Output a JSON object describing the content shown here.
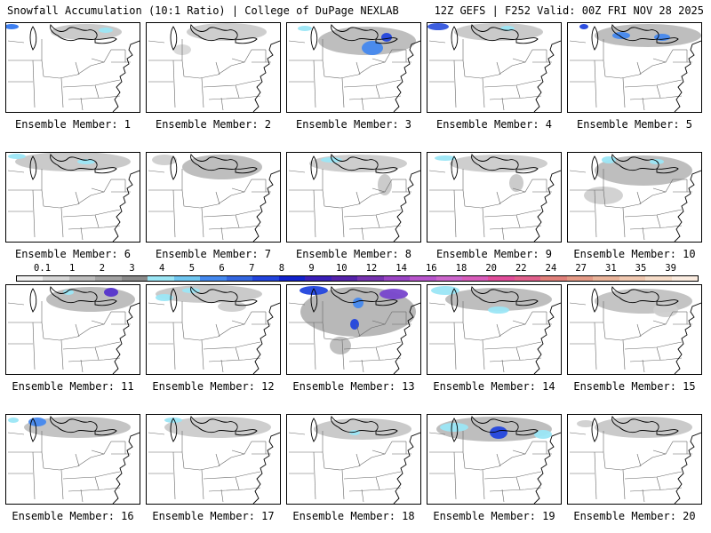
{
  "header": {
    "left": "Snowfall Accumulation (10:1 Ratio) | College of DuPage NEXLAB",
    "right": "12Z GEFS | F252 Valid: 00Z FRI NOV 28 2025"
  },
  "panels": [
    {
      "label": "Ensemble Member: 1",
      "snow": [
        {
          "cx": 90,
          "cy": 10,
          "rx": 40,
          "ry": 9,
          "c": "#b8b8b8"
        },
        {
          "cx": 112,
          "cy": 8,
          "rx": 8,
          "ry": 3,
          "c": "#9be6f5"
        },
        {
          "cx": 6,
          "cy": 4,
          "rx": 8,
          "ry": 3,
          "c": "#3377ee"
        }
      ]
    },
    {
      "label": "Ensemble Member: 2",
      "snow": [
        {
          "cx": 90,
          "cy": 10,
          "rx": 45,
          "ry": 10,
          "c": "#bdbdbd"
        },
        {
          "cx": 40,
          "cy": 30,
          "rx": 10,
          "ry": 6,
          "c": "#d8d8d8"
        }
      ]
    },
    {
      "label": "Ensemble Member: 3",
      "snow": [
        {
          "cx": 90,
          "cy": 20,
          "rx": 55,
          "ry": 16,
          "c": "#a8a8a8"
        },
        {
          "cx": 96,
          "cy": 28,
          "rx": 12,
          "ry": 8,
          "c": "#4488ee"
        },
        {
          "cx": 112,
          "cy": 16,
          "rx": 6,
          "ry": 5,
          "c": "#2244dd"
        },
        {
          "cx": 20,
          "cy": 6,
          "rx": 8,
          "ry": 3,
          "c": "#9be6f5"
        }
      ]
    },
    {
      "label": "Ensemble Member: 4",
      "snow": [
        {
          "cx": 80,
          "cy": 10,
          "rx": 50,
          "ry": 10,
          "c": "#b8b8b8"
        },
        {
          "cx": 12,
          "cy": 4,
          "rx": 12,
          "ry": 4,
          "c": "#3355dd"
        },
        {
          "cx": 90,
          "cy": 6,
          "rx": 8,
          "ry": 3,
          "c": "#9be6f5"
        }
      ]
    },
    {
      "label": "Ensemble Member: 5",
      "snow": [
        {
          "cx": 90,
          "cy": 14,
          "rx": 60,
          "ry": 13,
          "c": "#a8a8a8"
        },
        {
          "cx": 60,
          "cy": 14,
          "rx": 10,
          "ry": 4,
          "c": "#4488ee"
        },
        {
          "cx": 106,
          "cy": 16,
          "rx": 9,
          "ry": 4,
          "c": "#4488ee"
        },
        {
          "cx": 18,
          "cy": 4,
          "rx": 5,
          "ry": 3,
          "c": "#2244dd"
        }
      ]
    },
    {
      "label": "Ensemble Member: 6",
      "snow": [
        {
          "cx": 75,
          "cy": 10,
          "rx": 65,
          "ry": 11,
          "c": "#b8b8b8"
        },
        {
          "cx": 12,
          "cy": 4,
          "rx": 10,
          "ry": 3,
          "c": "#9be6f5"
        },
        {
          "cx": 90,
          "cy": 10,
          "rx": 10,
          "ry": 3,
          "c": "#9be6f5"
        }
      ]
    },
    {
      "label": "Ensemble Member: 7",
      "snow": [
        {
          "cx": 85,
          "cy": 16,
          "rx": 45,
          "ry": 14,
          "c": "#a8a8a8"
        },
        {
          "cx": 20,
          "cy": 8,
          "rx": 14,
          "ry": 6,
          "c": "#cfcfcf"
        }
      ]
    },
    {
      "label": "Ensemble Member: 8",
      "snow": [
        {
          "cx": 80,
          "cy": 12,
          "rx": 55,
          "ry": 10,
          "c": "#bdbdbd"
        },
        {
          "cx": 50,
          "cy": 8,
          "rx": 12,
          "ry": 3,
          "c": "#9be6f5"
        },
        {
          "cx": 110,
          "cy": 36,
          "rx": 8,
          "ry": 12,
          "c": "#c8c8c8"
        }
      ]
    },
    {
      "label": "Ensemble Member: 9",
      "snow": [
        {
          "cx": 80,
          "cy": 12,
          "rx": 55,
          "ry": 10,
          "c": "#bdbdbd"
        },
        {
          "cx": 20,
          "cy": 6,
          "rx": 12,
          "ry": 3,
          "c": "#9be6f5"
        },
        {
          "cx": 100,
          "cy": 34,
          "rx": 8,
          "ry": 10,
          "c": "#c8c8c8"
        }
      ]
    },
    {
      "label": "Ensemble Member: 10",
      "snow": [
        {
          "cx": 85,
          "cy": 20,
          "rx": 55,
          "ry": 17,
          "c": "#a8a8a8"
        },
        {
          "cx": 46,
          "cy": 8,
          "rx": 8,
          "ry": 4,
          "c": "#9be6f5"
        },
        {
          "cx": 100,
          "cy": 10,
          "rx": 8,
          "ry": 3,
          "c": "#9be6f5"
        },
        {
          "cx": 40,
          "cy": 48,
          "rx": 22,
          "ry": 10,
          "c": "#d0d0d0"
        }
      ]
    },
    {
      "label": "Ensemble Member: 11",
      "snow": [
        {
          "cx": 95,
          "cy": 16,
          "rx": 50,
          "ry": 14,
          "c": "#a8a8a8"
        },
        {
          "cx": 118,
          "cy": 8,
          "rx": 8,
          "ry": 5,
          "c": "#5533cc"
        },
        {
          "cx": 70,
          "cy": 8,
          "rx": 6,
          "ry": 3,
          "c": "#9be6f5"
        }
      ]
    },
    {
      "label": "Ensemble Member: 12",
      "snow": [
        {
          "cx": 70,
          "cy": 10,
          "rx": 60,
          "ry": 10,
          "c": "#b8b8b8"
        },
        {
          "cx": 20,
          "cy": 14,
          "rx": 10,
          "ry": 4,
          "c": "#9be6f5"
        },
        {
          "cx": 50,
          "cy": 6,
          "rx": 10,
          "ry": 3,
          "c": "#9be6f5"
        },
        {
          "cx": 96,
          "cy": 24,
          "rx": 16,
          "ry": 6,
          "c": "#cfcfcf"
        }
      ]
    },
    {
      "label": "Ensemble Member: 13",
      "snow": [
        {
          "cx": 80,
          "cy": 30,
          "rx": 65,
          "ry": 28,
          "c": "#a0a0a0"
        },
        {
          "cx": 30,
          "cy": 6,
          "rx": 16,
          "ry": 5,
          "c": "#2244dd"
        },
        {
          "cx": 120,
          "cy": 10,
          "rx": 16,
          "ry": 6,
          "c": "#7744cc"
        },
        {
          "cx": 80,
          "cy": 20,
          "rx": 6,
          "ry": 6,
          "c": "#4488ee"
        },
        {
          "cx": 76,
          "cy": 44,
          "rx": 5,
          "ry": 6,
          "c": "#2244dd"
        },
        {
          "cx": 60,
          "cy": 68,
          "rx": 12,
          "ry": 10,
          "c": "#bdbdbd"
        }
      ]
    },
    {
      "label": "Ensemble Member: 14",
      "snow": [
        {
          "cx": 80,
          "cy": 16,
          "rx": 60,
          "ry": 13,
          "c": "#a8a8a8"
        },
        {
          "cx": 20,
          "cy": 6,
          "rx": 16,
          "ry": 5,
          "c": "#9be6f5"
        },
        {
          "cx": 80,
          "cy": 28,
          "rx": 12,
          "ry": 4,
          "c": "#9be6f5"
        }
      ]
    },
    {
      "label": "Ensemble Member: 15",
      "snow": [
        {
          "cx": 85,
          "cy": 18,
          "rx": 55,
          "ry": 14,
          "c": "#b0b0b0"
        },
        {
          "cx": 110,
          "cy": 28,
          "rx": 14,
          "ry": 8,
          "c": "#cfcfcf"
        }
      ]
    },
    {
      "label": "Ensemble Member: 16",
      "snow": [
        {
          "cx": 80,
          "cy": 14,
          "rx": 60,
          "ry": 12,
          "c": "#b0b0b0"
        },
        {
          "cx": 35,
          "cy": 8,
          "rx": 10,
          "ry": 5,
          "c": "#4488ee"
        },
        {
          "cx": 8,
          "cy": 6,
          "rx": 6,
          "ry": 3,
          "c": "#9be6f5"
        }
      ]
    },
    {
      "label": "Ensemble Member: 17",
      "snow": [
        {
          "cx": 80,
          "cy": 14,
          "rx": 60,
          "ry": 12,
          "c": "#bdbdbd"
        },
        {
          "cx": 30,
          "cy": 6,
          "rx": 10,
          "ry": 3,
          "c": "#9be6f5"
        }
      ]
    },
    {
      "label": "Ensemble Member: 18",
      "snow": [
        {
          "cx": 85,
          "cy": 16,
          "rx": 55,
          "ry": 12,
          "c": "#b8b8b8"
        },
        {
          "cx": 76,
          "cy": 20,
          "rx": 6,
          "ry": 3,
          "c": "#9be6f5"
        }
      ]
    },
    {
      "label": "Ensemble Member: 19",
      "snow": [
        {
          "cx": 75,
          "cy": 16,
          "rx": 65,
          "ry": 14,
          "c": "#a8a8a8"
        },
        {
          "cx": 80,
          "cy": 20,
          "rx": 10,
          "ry": 7,
          "c": "#2244dd"
        },
        {
          "cx": 30,
          "cy": 14,
          "rx": 16,
          "ry": 5,
          "c": "#9be6f5"
        },
        {
          "cx": 130,
          "cy": 22,
          "rx": 10,
          "ry": 5,
          "c": "#9be6f5"
        }
      ]
    },
    {
      "label": "Ensemble Member: 20",
      "snow": [
        {
          "cx": 85,
          "cy": 14,
          "rx": 55,
          "ry": 12,
          "c": "#b8b8b8"
        },
        {
          "cx": 20,
          "cy": 10,
          "rx": 10,
          "ry": 4,
          "c": "#d0d0d0"
        }
      ]
    }
  ],
  "colorbar": {
    "ticks": [
      "0.1",
      "1",
      "2",
      "3",
      "4",
      "5",
      "6",
      "7",
      "8",
      "9",
      "10",
      "12",
      "14",
      "16",
      "18",
      "20",
      "22",
      "24",
      "27",
      "31",
      "35",
      "39"
    ],
    "colors": [
      "#f0f0f0",
      "#d6d6d6",
      "#bdbdbd",
      "#a3a3a3",
      "#8a8a8a",
      "#9be6f5",
      "#6fc6f0",
      "#4488ee",
      "#3366e0",
      "#2244dd",
      "#1122cc",
      "#3a1fb8",
      "#5522aa",
      "#7733b0",
      "#9a44c4",
      "#b855cc",
      "#cc66cc",
      "#d85dbb",
      "#e04d9a",
      "#e0608c",
      "#e0807a",
      "#e49a86",
      "#eab49a",
      "#f0c8b0",
      "#f6dcc8",
      "#fbece0"
    ]
  }
}
